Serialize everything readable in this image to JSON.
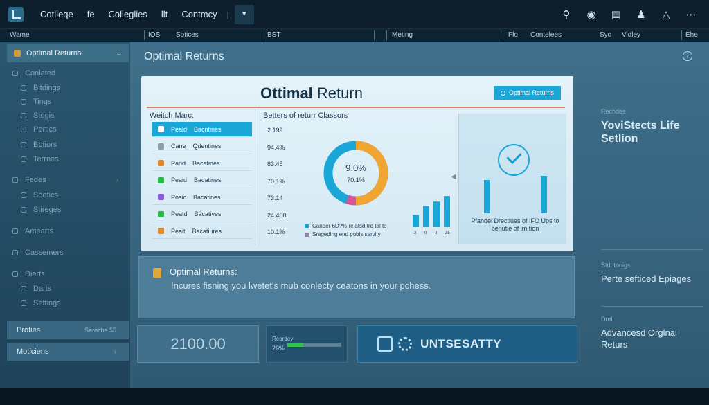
{
  "topbar": {
    "nav": [
      "Cotlieqe",
      "fe",
      "Colleglies",
      "llt",
      "Contmcy"
    ],
    "separators": [
      "|",
      "|",
      "|"
    ],
    "icons": [
      "search-icon",
      "compass-icon",
      "clipboard-icon",
      "user-icon",
      "bell-icon",
      "more-icon"
    ]
  },
  "colbar": {
    "columns": [
      "Wame",
      "IOS",
      "Sotices",
      "BST",
      "Meting",
      "Flo",
      "Contelees",
      "Syc",
      "Vidley",
      "Ehe"
    ]
  },
  "sidebar": {
    "active": "Optimal Returns",
    "items": [
      {
        "label": "Conlated"
      },
      {
        "label": "Bitdings"
      },
      {
        "label": "Tings"
      },
      {
        "label": "Stogis"
      },
      {
        "label": "Pertics"
      },
      {
        "label": "Botiors"
      },
      {
        "label": "Terrnes"
      },
      {
        "label": "Fedes"
      },
      {
        "label": "Soefics"
      },
      {
        "label": "Stireges"
      },
      {
        "label": "Amearts"
      },
      {
        "label": "Cassemers"
      },
      {
        "label": "Dierts"
      },
      {
        "label": "Darts"
      },
      {
        "label": "Settings"
      }
    ],
    "bottom": [
      {
        "label": "Profies",
        "extra": "Seroche 55"
      },
      {
        "label": "Moticiens",
        "extra": ""
      }
    ]
  },
  "main": {
    "title": "Optimal Returns",
    "card": {
      "title_bold": "Ottimal",
      "title_rest": " Return",
      "button": "Optimal Returns",
      "left_title": "Weitch Marc:",
      "rows": [
        {
          "a": "Peald",
          "b": "Bacntines",
          "color": "#ffffff"
        },
        {
          "a": "Cane",
          "b": "Qdentines",
          "color": "#8aa0ad"
        },
        {
          "a": "Parid",
          "b": "Bacatines",
          "color": "#e08a2e"
        },
        {
          "a": "Peaid",
          "b": "Bacatines",
          "color": "#2fb84a"
        },
        {
          "a": "Posic",
          "b": "Bacatines",
          "color": "#8a5cd6"
        },
        {
          "a": "Peatd",
          "b": "Bácatives",
          "color": "#2fb84a"
        },
        {
          "a": "Peait",
          "b": "Bacatiures",
          "color": "#e08a2e"
        }
      ],
      "mid_title": "Betters of returr Classors",
      "numbers": [
        "2.199",
        "94.4%",
        "83.45",
        "70.1%",
        "73.14",
        "24.400",
        "10.1%"
      ],
      "donut_top": "9.0%",
      "donut_bottom": "70.1%",
      "legend": [
        {
          "text": "Cander 6D?% relatsd trd tal to",
          "color": "#1aa7d8"
        },
        {
          "text": "Srageding end pobis servity",
          "color": "#8a7fa3"
        }
      ],
      "bar_labels": [
        "2",
        "0",
        "4",
        "35"
      ],
      "right_text": "Pfandel Drectiues of IFO Ups to benutie of im tion"
    },
    "message": {
      "title": "Optimal Returns:",
      "body": "Incures fisning you lwetet's mub conlecty ceatons in your pchess."
    },
    "stat_value": "2100.00",
    "progress": {
      "label": "Reordey",
      "value": "29%",
      "fraction": 0.29
    },
    "action_label": "UNTSESATTY"
  },
  "right_column": [
    {
      "label": "Rechdes",
      "value": "YoviStects Life Setlion"
    },
    {
      "label": "Stdt tonigs",
      "value": "Perte sefticed Epiages"
    },
    {
      "label": "Drel",
      "value": "Advancesd Orglnal Returs"
    }
  ],
  "chart_data": {
    "type": "bar",
    "categories": [
      "2",
      "0",
      "4",
      "35"
    ],
    "values": [
      22,
      38,
      46,
      56
    ],
    "ylim": [
      0,
      60
    ],
    "grid": false
  },
  "colors": {
    "accent": "#1aa7d8",
    "donut_orange": "#f0a431",
    "donut_pink": "#d6559a",
    "progress": "#2fc44d"
  }
}
